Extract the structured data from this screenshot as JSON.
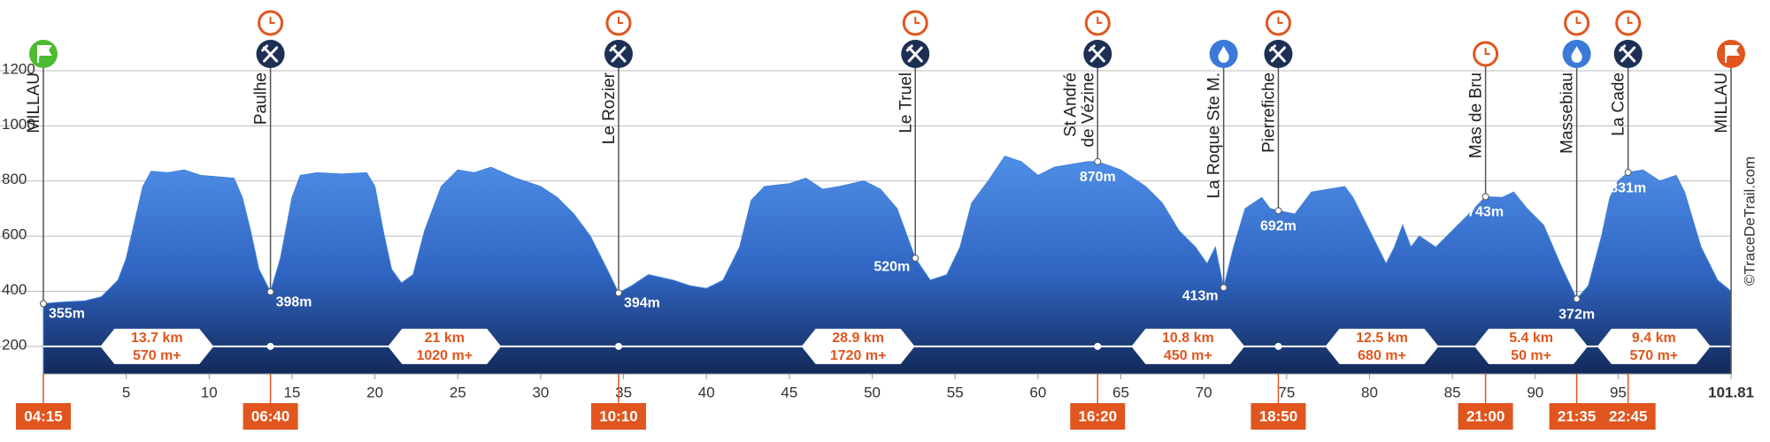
{
  "chart_data": {
    "type": "area",
    "x": [
      0,
      1,
      2.5,
      3.5,
      4.5,
      5,
      5.5,
      6,
      6.5,
      7.5,
      8.5,
      9.5,
      10.5,
      11.5,
      12,
      12.5,
      13,
      13.7,
      14.3,
      15,
      15.5,
      16.5,
      18,
      19.5,
      20,
      20.5,
      21,
      21.6,
      22.3,
      23,
      24,
      25,
      26,
      27,
      28.5,
      30,
      31,
      32,
      33,
      34,
      34.7,
      35.5,
      36.5,
      38,
      39,
      40,
      41,
      42,
      42.7,
      43.5,
      45,
      46,
      47,
      48,
      49.5,
      50.5,
      51.5,
      52.6,
      53.5,
      54.5,
      55.3,
      56,
      57,
      58,
      59,
      60,
      61,
      62,
      63,
      63.6,
      65,
      66.5,
      67.5,
      68.5,
      69.5,
      70.2,
      70.7,
      71.2,
      71.8,
      72.5,
      73.5,
      74,
      74.5,
      75.5,
      76.5,
      77.5,
      78.5,
      79,
      80,
      81,
      81.5,
      82,
      82.5,
      83,
      84,
      85,
      86,
      87,
      88,
      88.7,
      89.5,
      90.5,
      91.5,
      92.5,
      93.2,
      94,
      94.5,
      95,
      95.6,
      96.5,
      97.5,
      98.5,
      99,
      100,
      101,
      101.81
    ],
    "values": [
      355,
      360,
      365,
      380,
      440,
      520,
      650,
      780,
      835,
      830,
      840,
      820,
      815,
      810,
      740,
      620,
      480,
      398,
      520,
      740,
      820,
      830,
      825,
      830,
      780,
      620,
      480,
      430,
      460,
      620,
      780,
      840,
      830,
      850,
      810,
      780,
      740,
      680,
      600,
      480,
      394,
      420,
      460,
      440,
      420,
      410,
      440,
      560,
      730,
      780,
      790,
      810,
      770,
      780,
      800,
      770,
      700,
      520,
      440,
      460,
      560,
      720,
      800,
      890,
      870,
      820,
      850,
      860,
      870,
      870,
      840,
      780,
      720,
      620,
      560,
      500,
      560,
      413,
      560,
      700,
      740,
      700,
      692,
      680,
      760,
      770,
      780,
      740,
      620,
      500,
      560,
      640,
      560,
      600,
      560,
      620,
      680,
      743,
      740,
      760,
      700,
      640,
      500,
      372,
      420,
      600,
      740,
      800,
      831,
      840,
      800,
      820,
      760,
      560,
      440,
      400
    ],
    "color": "#3f7fdc",
    "xlim": [
      0,
      101.81
    ],
    "xticks": [
      5,
      10,
      15,
      20,
      25,
      30,
      35,
      40,
      45,
      50,
      55,
      60,
      65,
      70,
      75,
      80,
      85,
      90,
      95,
      101.81
    ],
    "ylim": [
      100,
      1200
    ],
    "yticks": [
      200,
      400,
      600,
      800,
      1000,
      1200
    ],
    "grid": true,
    "waypoints": {
      "labels": [
        [
          "MILLAU"
        ],
        [
          "Paulhe"
        ],
        [
          "Le Rozier"
        ],
        [
          "Le Truel"
        ],
        [
          "St André",
          "de Vézine"
        ],
        [
          "La Roque Ste M."
        ],
        [
          "Pierrefiche"
        ],
        [
          "Mas de Bru"
        ],
        [
          "Massebiau"
        ],
        [
          "La Cade"
        ],
        [
          "MILLAU"
        ]
      ],
      "x": [
        0,
        13.7,
        34.7,
        52.6,
        63.6,
        71.2,
        74.5,
        87,
        92.5,
        95.6,
        101.81
      ],
      "values": [
        355,
        398,
        394,
        520,
        870,
        413,
        692,
        743,
        372,
        831,
        null
      ],
      "value_labels": [
        "355m",
        "398m",
        "394m",
        "520m",
        "870m",
        "413m",
        "692m",
        "743m",
        "372m",
        "831m",
        null
      ],
      "services": [
        [
          "start"
        ],
        [
          "clock",
          "food"
        ],
        [
          "clock",
          "food"
        ],
        [
          "clock",
          "food"
        ],
        [
          "clock",
          "food"
        ],
        [
          "water"
        ],
        [
          "clock",
          "food"
        ],
        [
          "clock"
        ],
        [
          "clock",
          "water"
        ],
        [
          "clock",
          "food"
        ],
        [
          "finish"
        ]
      ]
    },
    "sections": [
      {
        "km_from": 0,
        "km_to": 13.7,
        "distance": "13.7 km",
        "gain": "570 m+"
      },
      {
        "km_from": 13.7,
        "km_to": 34.7,
        "distance": "21 km",
        "gain": "1020 m+"
      },
      {
        "km_from": 34.7,
        "km_to": 63.6,
        "distance": "28.9 km",
        "gain": "1720 m+"
      },
      {
        "km_from": 63.6,
        "km_to": 74.5,
        "distance": "10.8 km",
        "gain": "450 m+"
      },
      {
        "km_from": 74.5,
        "km_to": 87,
        "distance": "12.5 km",
        "gain": "680 m+"
      },
      {
        "km_from": 87,
        "km_to": 92.5,
        "distance": "5.4 km",
        "gain": "50 m+"
      },
      {
        "km_from": 92.5,
        "km_to": 101.81,
        "distance": "9.4 km",
        "gain": "570 m+"
      }
    ],
    "times": {
      "x": [
        0,
        13.7,
        34.7,
        63.6,
        74.5,
        87,
        92.5,
        95.6
      ],
      "labels": [
        "04:15",
        "06:40",
        "10:10",
        "16:20",
        "18:50",
        "21:00",
        "21:35",
        "22:45"
      ]
    },
    "watermark": "©TraceDeTrail.com"
  }
}
